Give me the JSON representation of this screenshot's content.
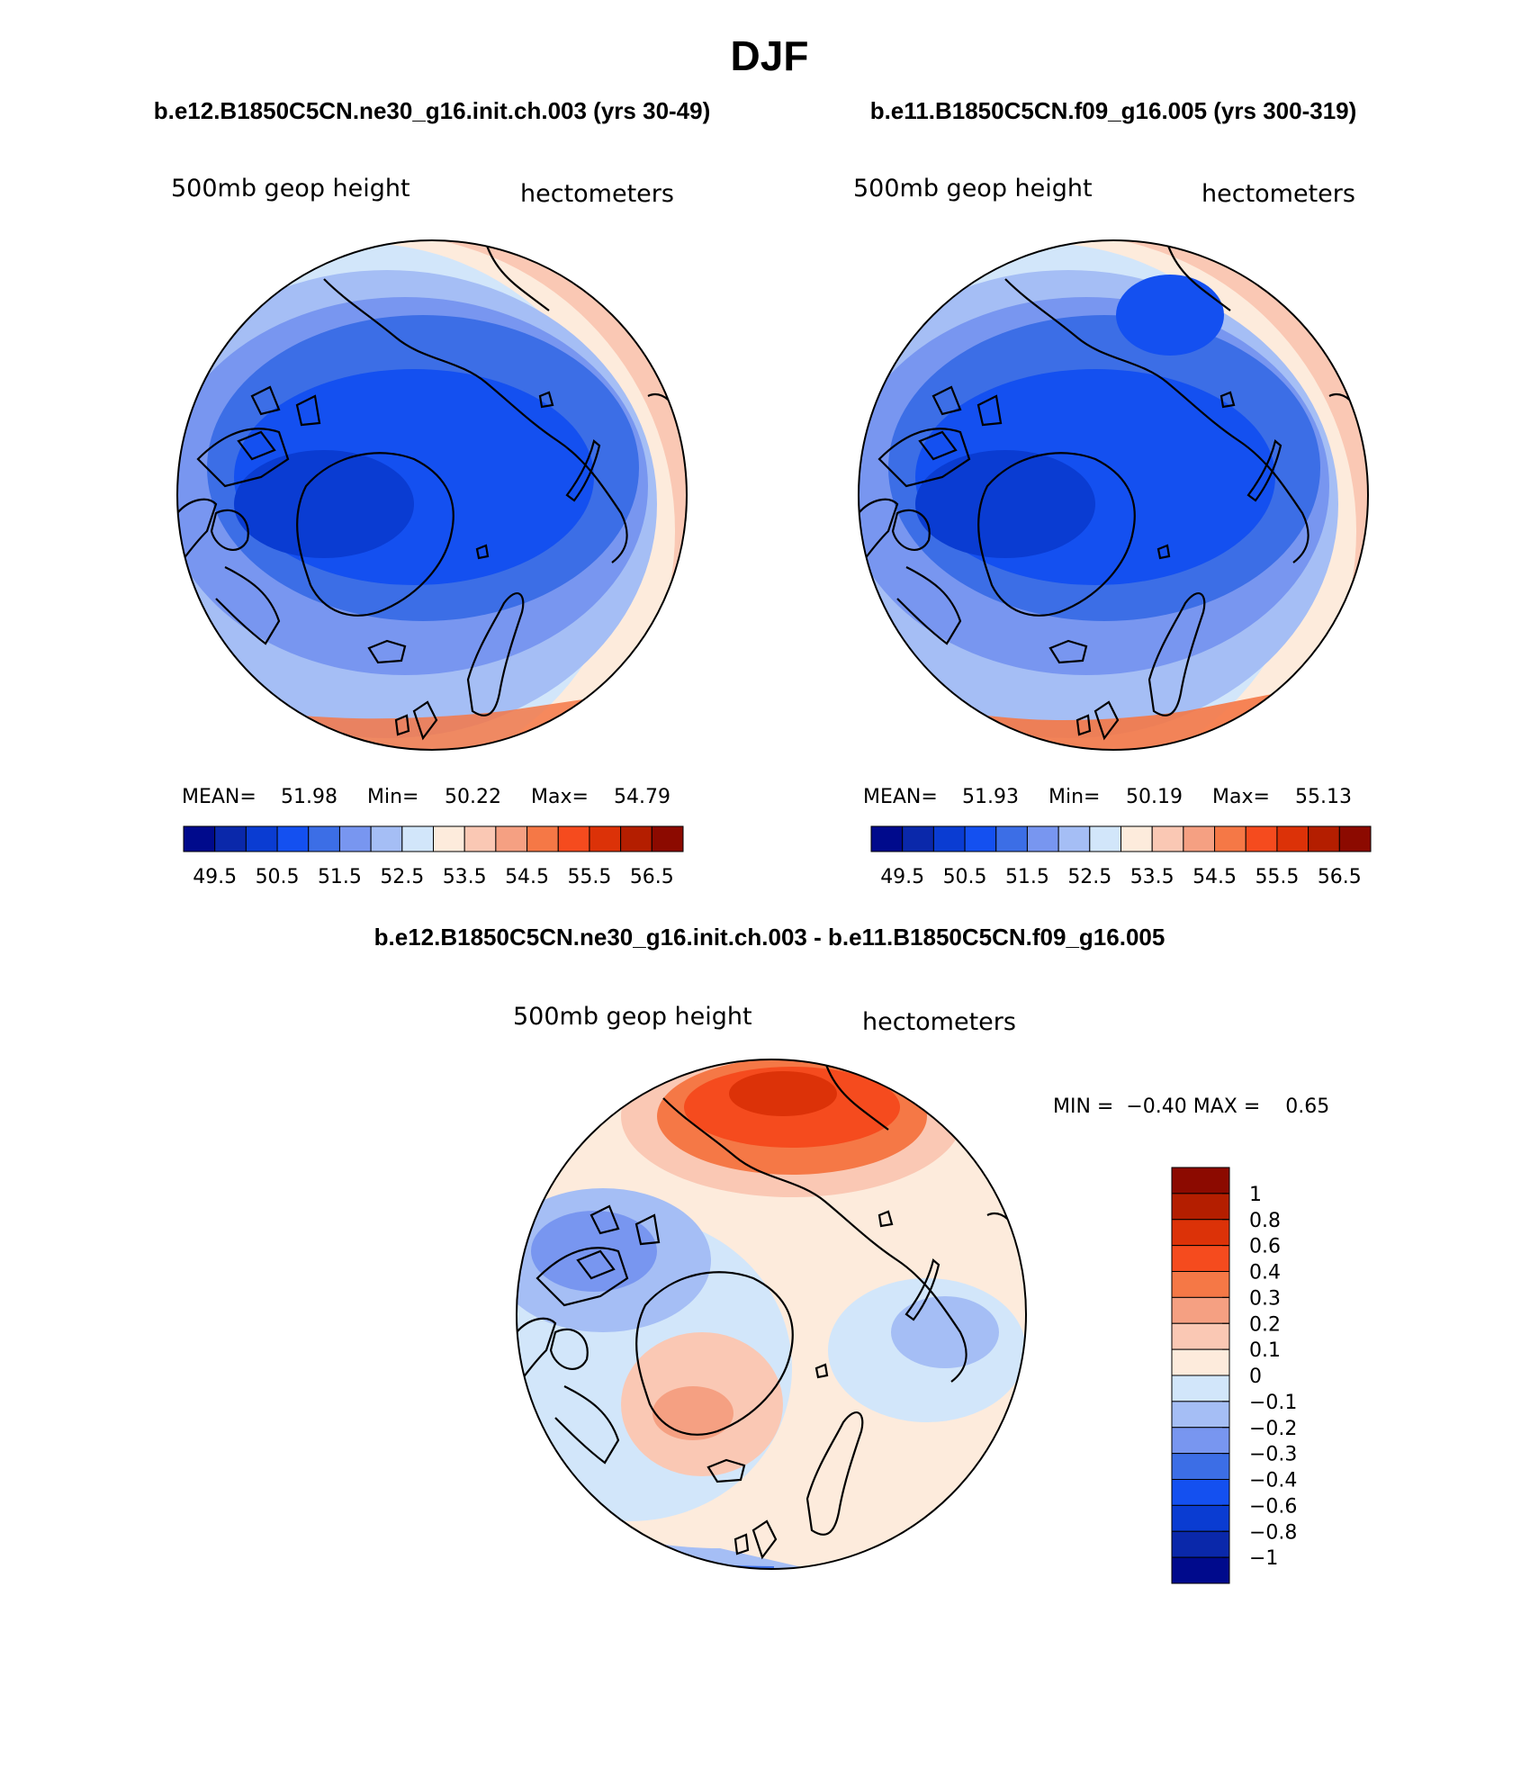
{
  "title": "DJF",
  "panels": [
    {
      "case": "b.e12.B1850C5CN.ne30_g16.init.ch.003 (yrs 30-49)",
      "variable": "500mb geop height",
      "units": "hectometers",
      "stats": {
        "mean_label": "MEAN=",
        "mean": "51.98",
        "min_label": "Min=",
        "min": "50.22",
        "max_label": "Max=",
        "max": "54.79"
      }
    },
    {
      "case": "b.e11.B1850C5CN.f09_g16.005 (yrs 300-319)",
      "variable": "500mb geop height",
      "units": "hectometers",
      "stats": {
        "mean_label": "MEAN=",
        "mean": "51.93",
        "min_label": "Min=",
        "min": "50.19",
        "max_label": "Max=",
        "max": "55.13"
      }
    }
  ],
  "top_colorbar": {
    "colors": [
      "#000a8c",
      "#0a28aa",
      "#0a3cd2",
      "#1450f0",
      "#3c6ee6",
      "#7896f0",
      "#a5bef5",
      "#d2e6fa",
      "#fdebdc",
      "#fac8b4",
      "#f5a082",
      "#f57846",
      "#f54b1e",
      "#dc3208",
      "#b41e00",
      "#8c0a00"
    ],
    "labels": [
      "49.5",
      "50.5",
      "51.5",
      "52.5",
      "53.5",
      "54.5",
      "55.5",
      "56.5"
    ]
  },
  "difference": {
    "title": "b.e12.B1850C5CN.ne30_g16.init.ch.003 - b.e11.B1850C5CN.f09_g16.005",
    "variable": "500mb geop height",
    "units": "hectometers",
    "minmax_text": "MIN =  −0.40 MAX =    0.65",
    "colors": [
      "#000a8c",
      "#0a28aa",
      "#0a3cd2",
      "#1450f0",
      "#3c6ee6",
      "#7896f0",
      "#a5bef5",
      "#d2e6fa",
      "#fdebdc",
      "#fac8b4",
      "#f5a082",
      "#f57846",
      "#f54b1e",
      "#dc3208",
      "#b41e00",
      "#8c0a00"
    ],
    "labels": [
      "−1",
      "−0.8",
      "−0.6",
      "−0.4",
      "−0.3",
      "−0.2",
      "−0.1",
      "0",
      "0.1",
      "0.2",
      "0.3",
      "0.4",
      "0.6",
      "0.8",
      "1"
    ]
  }
}
